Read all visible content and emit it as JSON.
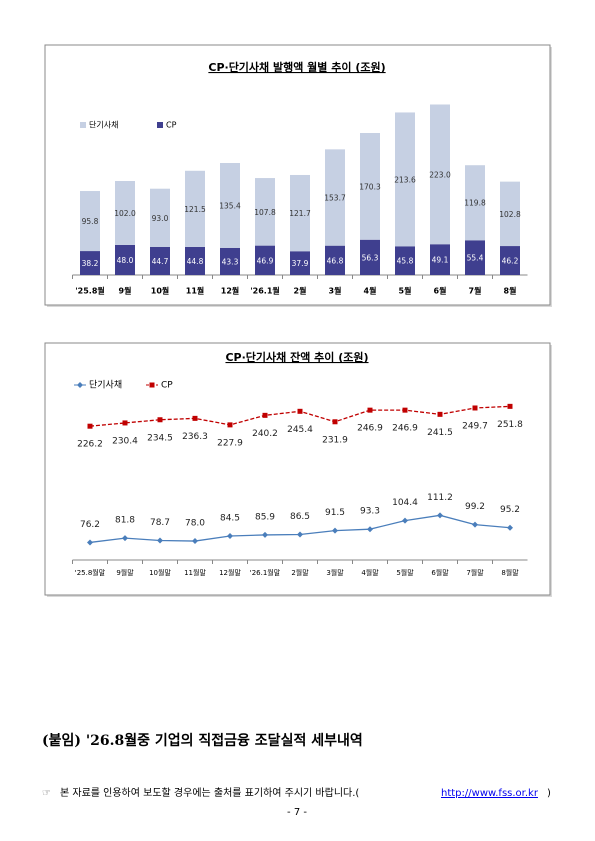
{
  "chart_data": [
    {
      "type": "bar",
      "stacked": true,
      "title": "CP·단기사채 발행액 월별 추이 (조원)",
      "categories": [
        "'25.8월",
        "9월",
        "10월",
        "11월",
        "12월",
        "'26.1월",
        "2월",
        "3월",
        "4월",
        "5월",
        "6월",
        "7월",
        "8월"
      ],
      "series": [
        {
          "name": "CP",
          "color": "#3f3f8f",
          "values": [
            38.2,
            48,
            44.7,
            44.8,
            43.3,
            46.9,
            37.9,
            46.8,
            56.3,
            45.8,
            49.1,
            55.4,
            46.2
          ],
          "value_labels": [
            "38.2",
            "48.0",
            "44.7",
            "44.8",
            "43.3",
            "46.9",
            "37.9",
            "46.8",
            "56.3",
            "45.8",
            "49.1",
            "55.4",
            "46.2"
          ]
        },
        {
          "name": "단기사채",
          "color": "#c6d0e3",
          "values": [
            95.8,
            102,
            93,
            121.5,
            135.4,
            107.8,
            121.7,
            153.7,
            170.3,
            213.6,
            223,
            119.8,
            102.8
          ],
          "value_labels": [
            "95.8",
            "102.0",
            "93.0",
            "121.5",
            "135.4",
            "107.8",
            "121.7",
            "153.7",
            "170.3",
            "213.6",
            "223.0",
            "119.8",
            "102.8"
          ]
        }
      ],
      "ylim": [
        0,
        300
      ]
    },
    {
      "type": "line",
      "title": "CP·단기사채 잔액 추이 (조원)",
      "categories": [
        "'25.8월말",
        "9월말",
        "10월말",
        "11월말",
        "12월말",
        "'26.1월말",
        "2월말",
        "3월말",
        "4월말",
        "5월말",
        "6월말",
        "7월말",
        "8월말"
      ],
      "series": [
        {
          "name": "단기사채",
          "color": "#4a7ebb",
          "marker": "diamond",
          "dashed": false,
          "label_position": "above",
          "values": [
            76.2,
            81.8,
            78.7,
            78,
            84.5,
            85.9,
            86.5,
            91.5,
            93.3,
            104.4,
            111.2,
            99.2,
            95.2
          ],
          "value_labels": [
            "76.2",
            "81.8",
            "78.7",
            "78.0",
            "84.5",
            "85.9",
            "86.5",
            "91.5",
            "93.3",
            "104.4",
            "111.2",
            "99.2",
            "95.2"
          ]
        },
        {
          "name": "CP",
          "color": "#c00000",
          "marker": "square",
          "dashed": true,
          "label_position": "below",
          "values": [
            226.2,
            230.4,
            234.5,
            236.3,
            227.9,
            240.2,
            245.4,
            231.9,
            246.9,
            246.9,
            241.5,
            249.7,
            251.8
          ],
          "value_labels": [
            "226.2",
            "230.4",
            "234.5",
            "236.3",
            "227.9",
            "240.2",
            "245.4",
            "231.9",
            "246.9",
            "246.9",
            "241.5",
            "249.7",
            "251.8"
          ]
        }
      ],
      "ylim": [
        60,
        260
      ]
    }
  ],
  "appendix_title": "(붙임) '26.8월중 기업의 직접금융 조달실적 세부내역",
  "notice": {
    "icon": "☞",
    "text": "본 자료를 인용하여 보도할 경우에는 출처를 표기하여 주시기 바랍니다.(",
    "link": "http://www.fss.or.kr",
    "close": ")"
  },
  "page_number": "- 7 -"
}
